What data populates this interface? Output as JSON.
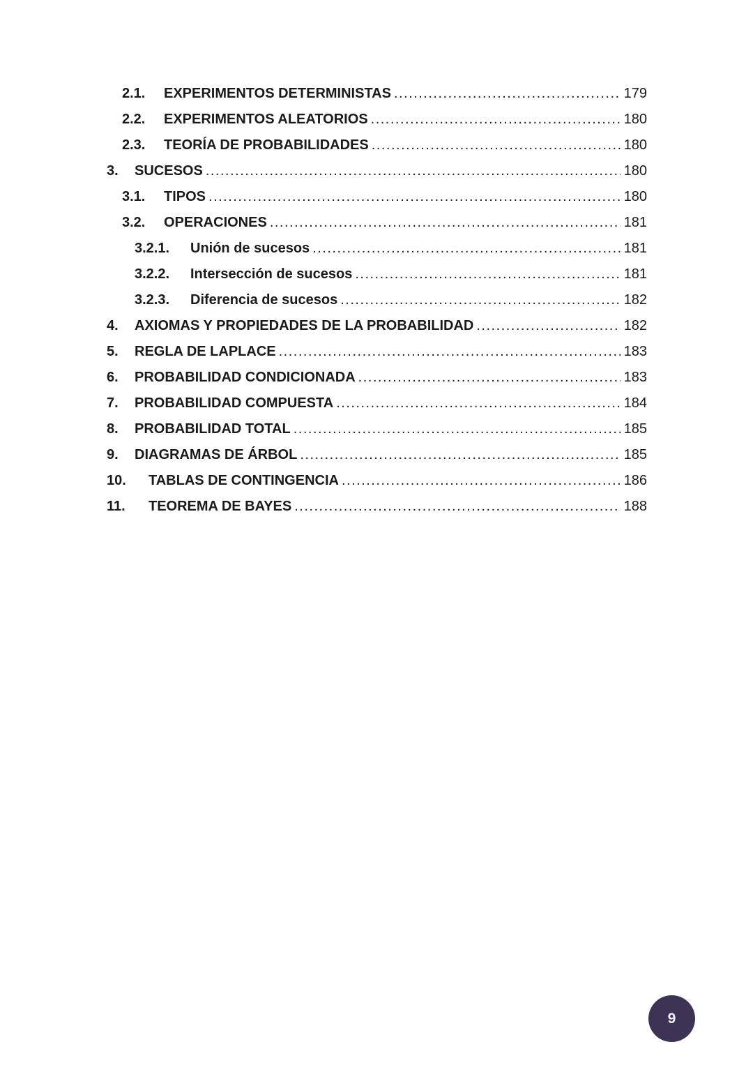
{
  "page": {
    "badge_number": "9",
    "badge_bg_color": "#3d3355",
    "badge_text_color": "#f4f1f6",
    "text_color": "#1a1a1a"
  },
  "toc": {
    "entries": [
      {
        "num": "2.1.",
        "label": "EXPERIMENTOS DETERMINISTAS",
        "page": "179",
        "level": 2
      },
      {
        "num": "2.2.",
        "label": "EXPERIMENTOS ALEATORIOS",
        "page": "180",
        "level": 2
      },
      {
        "num": "2.3.",
        "label": "TEORÍA DE PROBABILIDADES",
        "page": "180",
        "level": 2
      },
      {
        "num": "3.",
        "label": "SUCESOS",
        "page": "180",
        "level": 1
      },
      {
        "num": "3.1.",
        "label": "TIPOS",
        "page": "180",
        "level": 2
      },
      {
        "num": "3.2.",
        "label": "OPERACIONES",
        "page": "181",
        "level": 2
      },
      {
        "num": "3.2.1.",
        "label": "Unión de sucesos",
        "page": "181",
        "level": 3
      },
      {
        "num": "3.2.2.",
        "label": "Intersección de sucesos",
        "page": "181",
        "level": 3
      },
      {
        "num": "3.2.3.",
        "label": "Diferencia de sucesos",
        "page": "182",
        "level": 3
      },
      {
        "num": "4.",
        "label": "AXIOMAS Y PROPIEDADES DE LA PROBABILIDAD",
        "page": "182",
        "level": 1
      },
      {
        "num": "5.",
        "label": "REGLA DE LAPLACE",
        "page": "183",
        "level": 1
      },
      {
        "num": "6.",
        "label": "PROBABILIDAD CONDICIONADA",
        "page": "183",
        "level": 1
      },
      {
        "num": "7.",
        "label": "PROBABILIDAD COMPUESTA",
        "page": "184",
        "level": 1
      },
      {
        "num": "8.",
        "label": "PROBABILIDAD TOTAL",
        "page": "185",
        "level": 1
      },
      {
        "num": "9.",
        "label": "DIAGRAMAS DE ÁRBOL",
        "page": "185",
        "level": 1
      },
      {
        "num": "10.",
        "label": "TABLAS DE CONTINGENCIA",
        "page": "186",
        "level": 1
      },
      {
        "num": "11.",
        "label": "TEOREMA DE BAYES",
        "page": "188",
        "level": 1
      }
    ]
  }
}
